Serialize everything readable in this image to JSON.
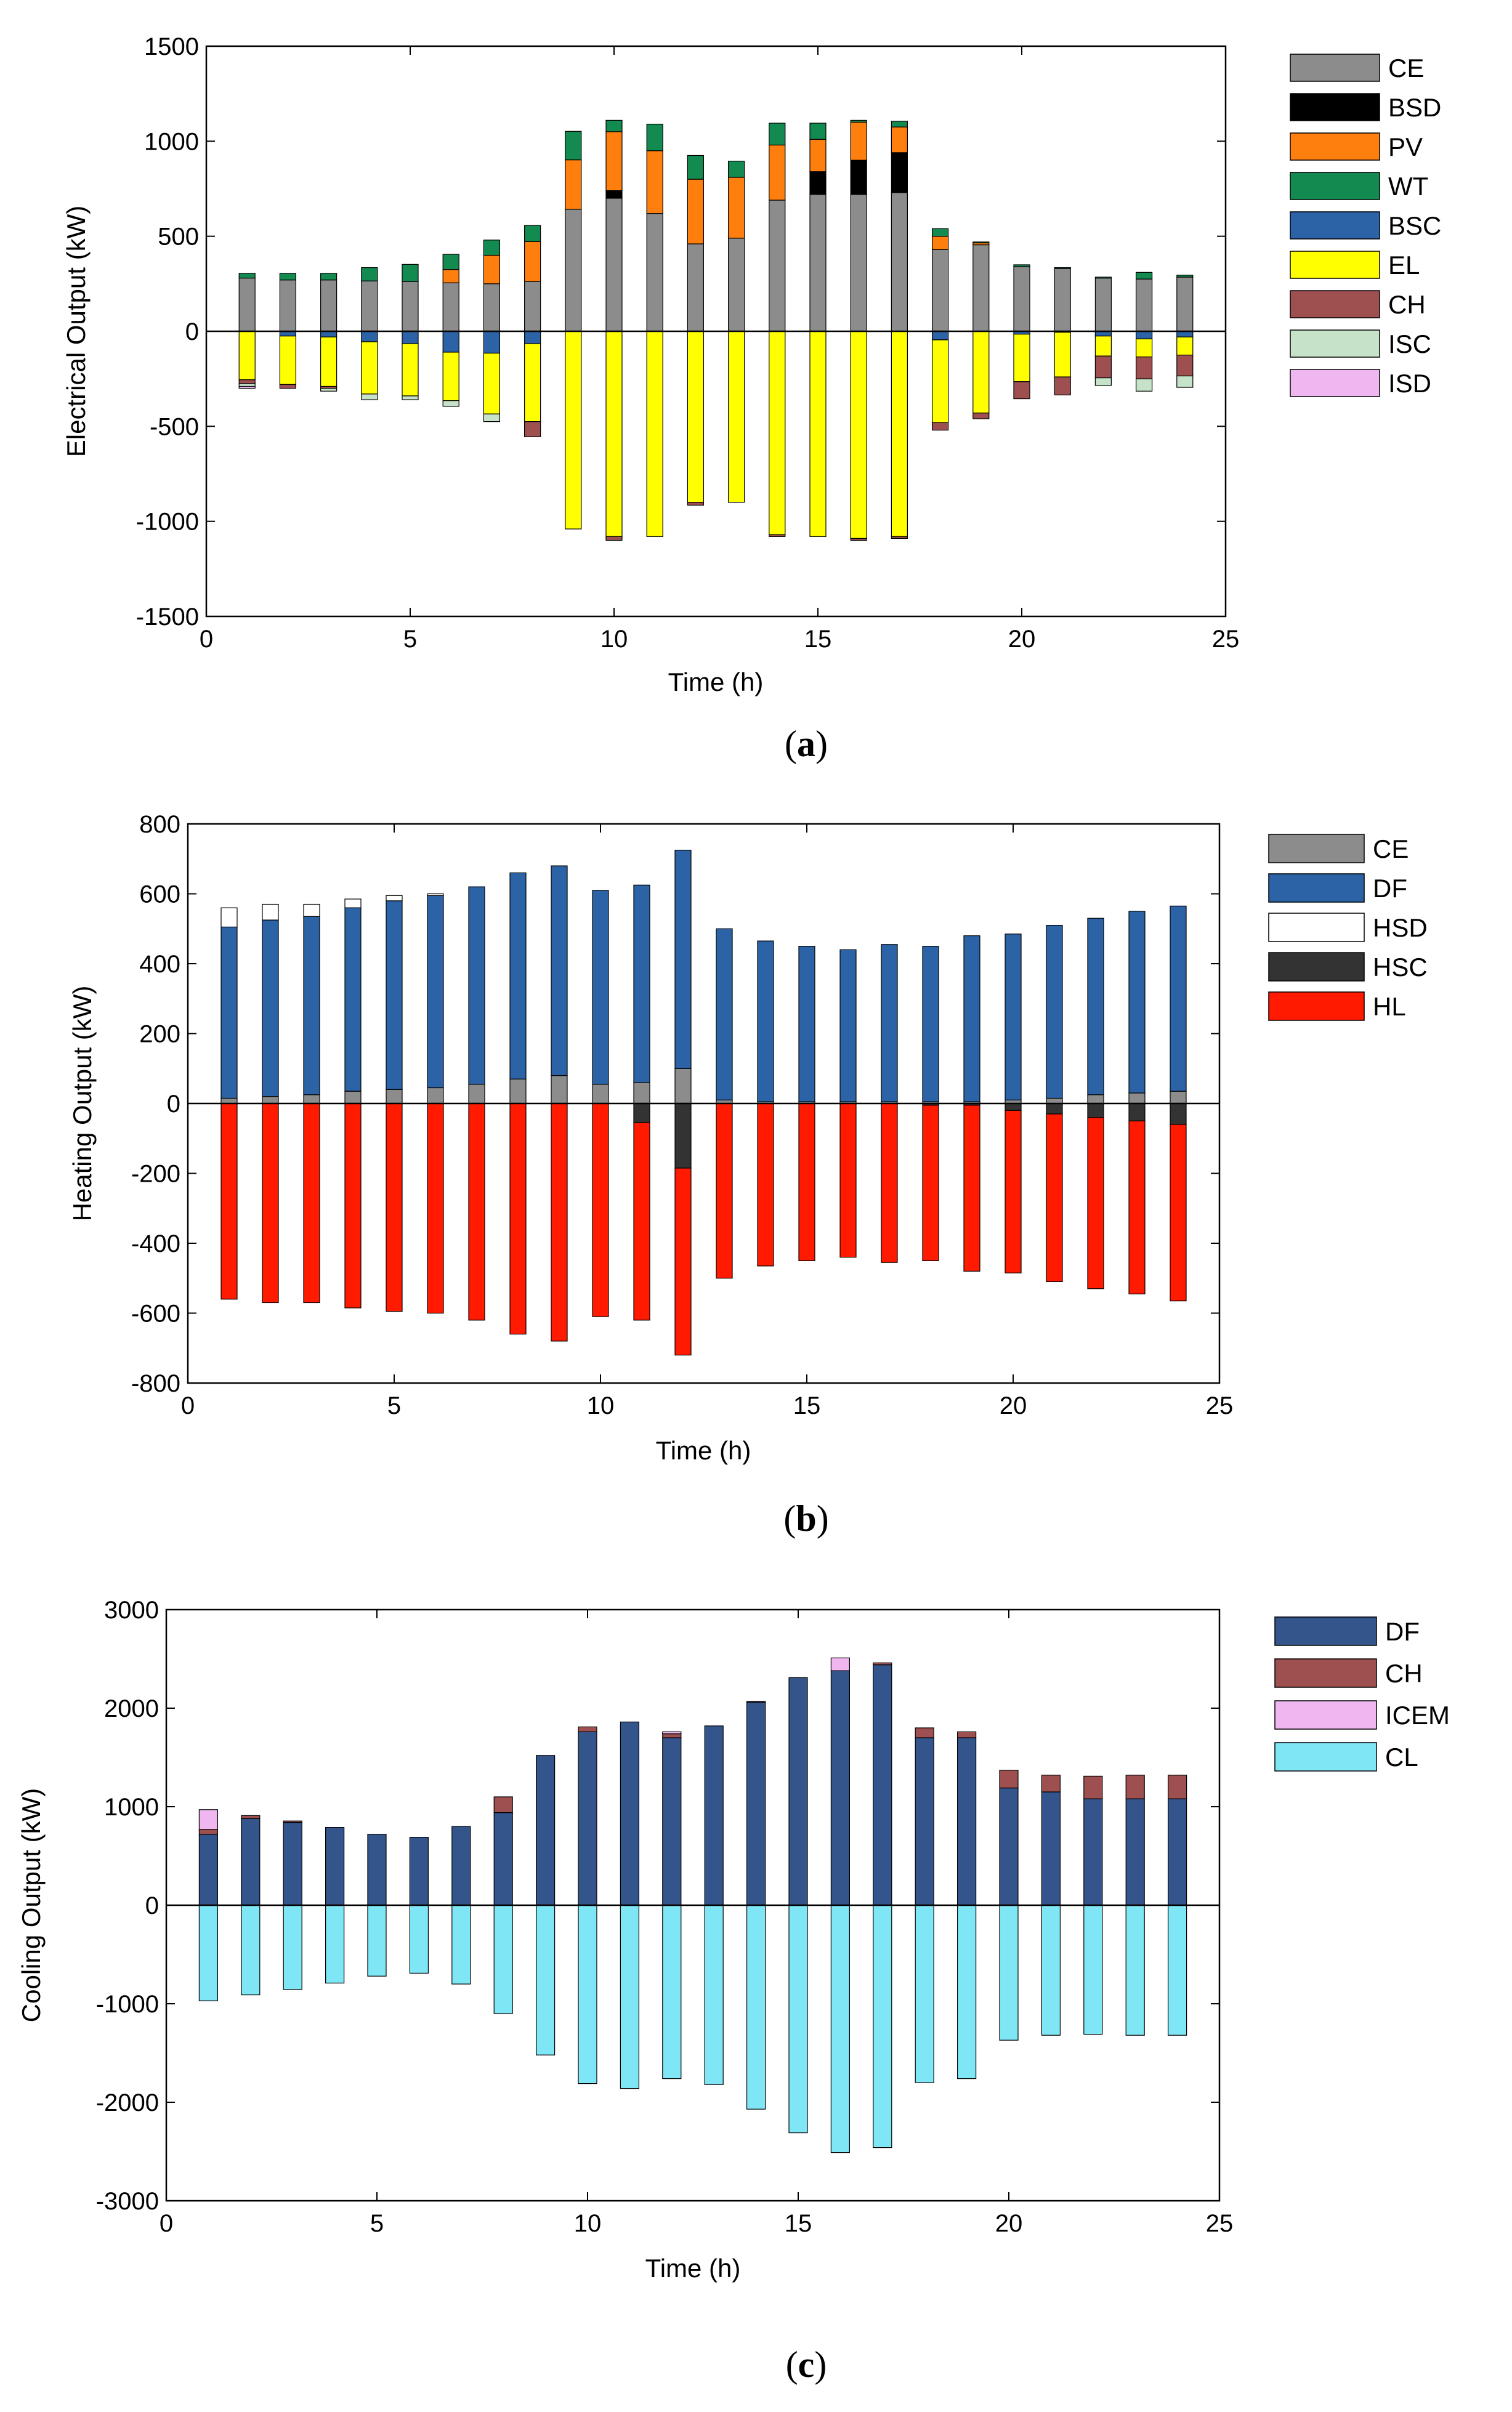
{
  "figure": {
    "panel_labels": [
      {
        "paren_open": "(",
        "letter": "a",
        "paren_close": ")"
      },
      {
        "paren_open": "(",
        "letter": "b",
        "paren_close": ")"
      },
      {
        "paren_open": "(",
        "letter": "c",
        "paren_close": ")"
      }
    ]
  },
  "chart_data": [
    {
      "type": "bar",
      "subtype": "stacked",
      "panel": "a",
      "title": "",
      "xlabel": "Time (h)",
      "ylabel": "Electrical Output (kW)",
      "xlim": [
        0,
        25
      ],
      "ylim": [
        -1500,
        1500
      ],
      "xticks": [
        0,
        5,
        10,
        15,
        20,
        25
      ],
      "yticks": [
        -1500,
        -1000,
        -500,
        0,
        500,
        1000,
        1500
      ],
      "grid": false,
      "legend_position": "outside-right",
      "x": [
        1,
        2,
        3,
        4,
        5,
        6,
        7,
        8,
        9,
        10,
        11,
        12,
        13,
        14,
        15,
        16,
        17,
        18,
        19,
        20,
        21,
        22,
        23,
        24
      ],
      "series": [
        {
          "name": "CE",
          "color": "#8c8c8c",
          "values": [
            280,
            270,
            270,
            265,
            262,
            255,
            250,
            262,
            642,
            700,
            620,
            460,
            490,
            690,
            720,
            720,
            730,
            430,
            455,
            340,
            330,
            280,
            275,
            285
          ]
        },
        {
          "name": "BSD",
          "color": "#000000",
          "values": [
            0,
            0,
            0,
            0,
            0,
            0,
            0,
            0,
            0,
            40,
            0,
            0,
            0,
            0,
            120,
            180,
            210,
            0,
            0,
            0,
            0,
            0,
            0,
            0
          ]
        },
        {
          "name": "PV",
          "color": "#ff7f0e",
          "values": [
            0,
            0,
            0,
            0,
            0,
            70,
            150,
            210,
            260,
            310,
            330,
            340,
            320,
            290,
            170,
            200,
            135,
            70,
            10,
            0,
            0,
            0,
            0,
            0
          ]
        },
        {
          "name": "WT",
          "color": "#138a4f",
          "values": [
            25,
            35,
            35,
            70,
            90,
            80,
            80,
            85,
            150,
            60,
            140,
            125,
            85,
            115,
            85,
            10,
            30,
            40,
            5,
            10,
            5,
            5,
            35,
            10
          ]
        },
        {
          "name": "BSC",
          "color": "#2b63a6",
          "values": [
            0,
            -25,
            -30,
            -55,
            -65,
            -110,
            -115,
            -65,
            0,
            0,
            0,
            0,
            0,
            0,
            0,
            0,
            0,
            -45,
            0,
            -15,
            -5,
            -25,
            -40,
            -30
          ]
        },
        {
          "name": "EL",
          "color": "#ffff00",
          "values": [
            -255,
            -255,
            -260,
            -275,
            -275,
            -255,
            -320,
            -410,
            -1040,
            -1080,
            -1080,
            -900,
            -900,
            -1070,
            -1080,
            -1090,
            -1080,
            -435,
            -430,
            -250,
            -235,
            -105,
            -95,
            -95
          ]
        },
        {
          "name": "CH",
          "color": "#9e4f4f",
          "values": [
            -20,
            -20,
            -10,
            0,
            0,
            0,
            0,
            -80,
            0,
            -20,
            0,
            -15,
            0,
            -10,
            0,
            -10,
            -10,
            -40,
            -30,
            -90,
            -95,
            -115,
            -115,
            -110
          ]
        },
        {
          "name": "ISC",
          "color": "#c6e3c9",
          "values": [
            -15,
            0,
            -15,
            -30,
            -20,
            -30,
            -40,
            0,
            0,
            0,
            0,
            0,
            0,
            0,
            0,
            0,
            0,
            0,
            0,
            0,
            0,
            -40,
            -65,
            -60
          ]
        },
        {
          "name": "ISD",
          "color": "#f0b6f0",
          "values": [
            -10,
            0,
            0,
            0,
            0,
            0,
            0,
            0,
            0,
            0,
            0,
            0,
            0,
            0,
            0,
            0,
            0,
            0,
            0,
            0,
            0,
            0,
            0,
            0
          ]
        }
      ]
    },
    {
      "type": "bar",
      "subtype": "stacked",
      "panel": "b",
      "title": "",
      "xlabel": "Time (h)",
      "ylabel": "Heating Output (kW)",
      "xlim": [
        0,
        25
      ],
      "ylim": [
        -800,
        800
      ],
      "xticks": [
        0,
        5,
        10,
        15,
        20,
        25
      ],
      "yticks": [
        -800,
        -600,
        -400,
        -200,
        0,
        200,
        400,
        600,
        800
      ],
      "grid": false,
      "legend_position": "outside-right",
      "x": [
        1,
        2,
        3,
        4,
        5,
        6,
        7,
        8,
        9,
        10,
        11,
        12,
        13,
        14,
        15,
        16,
        17,
        18,
        19,
        20,
        21,
        22,
        23,
        24
      ],
      "series": [
        {
          "name": "CE",
          "color": "#8c8c8c",
          "values": [
            15,
            20,
            25,
            35,
            40,
            45,
            55,
            70,
            80,
            55,
            60,
            100,
            10,
            5,
            5,
            5,
            5,
            5,
            5,
            10,
            15,
            25,
            30,
            35
          ]
        },
        {
          "name": "DF",
          "color": "#2b63a6",
          "values": [
            490,
            505,
            510,
            525,
            540,
            550,
            565,
            590,
            600,
            555,
            565,
            625,
            490,
            460,
            445,
            435,
            450,
            445,
            475,
            475,
            495,
            505,
            520,
            530
          ]
        },
        {
          "name": "HSD",
          "color": "#ffffff",
          "values": [
            55,
            45,
            35,
            25,
            15,
            5,
            0,
            0,
            0,
            0,
            0,
            0,
            0,
            0,
            0,
            0,
            0,
            0,
            0,
            0,
            0,
            0,
            0,
            0
          ]
        },
        {
          "name": "HSC",
          "color": "#333333",
          "values": [
            0,
            0,
            0,
            0,
            0,
            0,
            0,
            0,
            0,
            0,
            -55,
            -185,
            0,
            0,
            0,
            0,
            0,
            -5,
            -5,
            -20,
            -30,
            -40,
            -50,
            -60
          ]
        },
        {
          "name": "HL",
          "color": "#ff1a00",
          "values": [
            -560,
            -570,
            -570,
            -585,
            -595,
            -600,
            -620,
            -660,
            -680,
            -610,
            -565,
            -535,
            -500,
            -465,
            -450,
            -440,
            -455,
            -445,
            -475,
            -465,
            -480,
            -490,
            -495,
            -505
          ]
        }
      ]
    },
    {
      "type": "bar",
      "subtype": "stacked",
      "panel": "c",
      "title": "",
      "xlabel": "Time (h)",
      "ylabel": "Cooling Output (kW)",
      "xlim": [
        0,
        25
      ],
      "ylim": [
        -3000,
        3000
      ],
      "xticks": [
        0,
        5,
        10,
        15,
        20,
        25
      ],
      "yticks": [
        -3000,
        -2000,
        -1000,
        0,
        1000,
        2000,
        3000
      ],
      "grid": false,
      "legend_position": "outside-right",
      "x": [
        1,
        2,
        3,
        4,
        5,
        6,
        7,
        8,
        9,
        10,
        11,
        12,
        13,
        14,
        15,
        16,
        17,
        18,
        19,
        20,
        21,
        22,
        23,
        24
      ],
      "series": [
        {
          "name": "DF",
          "color": "#34558c",
          "values": [
            720,
            880,
            840,
            790,
            720,
            690,
            800,
            940,
            1520,
            1760,
            1860,
            1700,
            1820,
            2060,
            2310,
            2380,
            2440,
            1700,
            1700,
            1190,
            1150,
            1080,
            1080,
            1080
          ]
        },
        {
          "name": "CH",
          "color": "#9e4f4f",
          "values": [
            50,
            30,
            15,
            0,
            0,
            0,
            0,
            160,
            0,
            50,
            0,
            40,
            0,
            10,
            0,
            0,
            20,
            100,
            60,
            180,
            170,
            230,
            240,
            240
          ]
        },
        {
          "name": "ICEM",
          "color": "#f0b6f0",
          "values": [
            200,
            0,
            0,
            0,
            0,
            0,
            0,
            0,
            0,
            0,
            0,
            20,
            0,
            0,
            0,
            130,
            0,
            0,
            0,
            0,
            0,
            0,
            0,
            0
          ]
        },
        {
          "name": "CL",
          "color": "#7fe6f5",
          "values": [
            -970,
            -910,
            -855,
            -790,
            -720,
            -690,
            -800,
            -1100,
            -1520,
            -1810,
            -1860,
            -1760,
            -1820,
            -2070,
            -2310,
            -2510,
            -2460,
            -1800,
            -1760,
            -1370,
            -1320,
            -1310,
            -1320,
            -1320
          ]
        }
      ]
    }
  ]
}
